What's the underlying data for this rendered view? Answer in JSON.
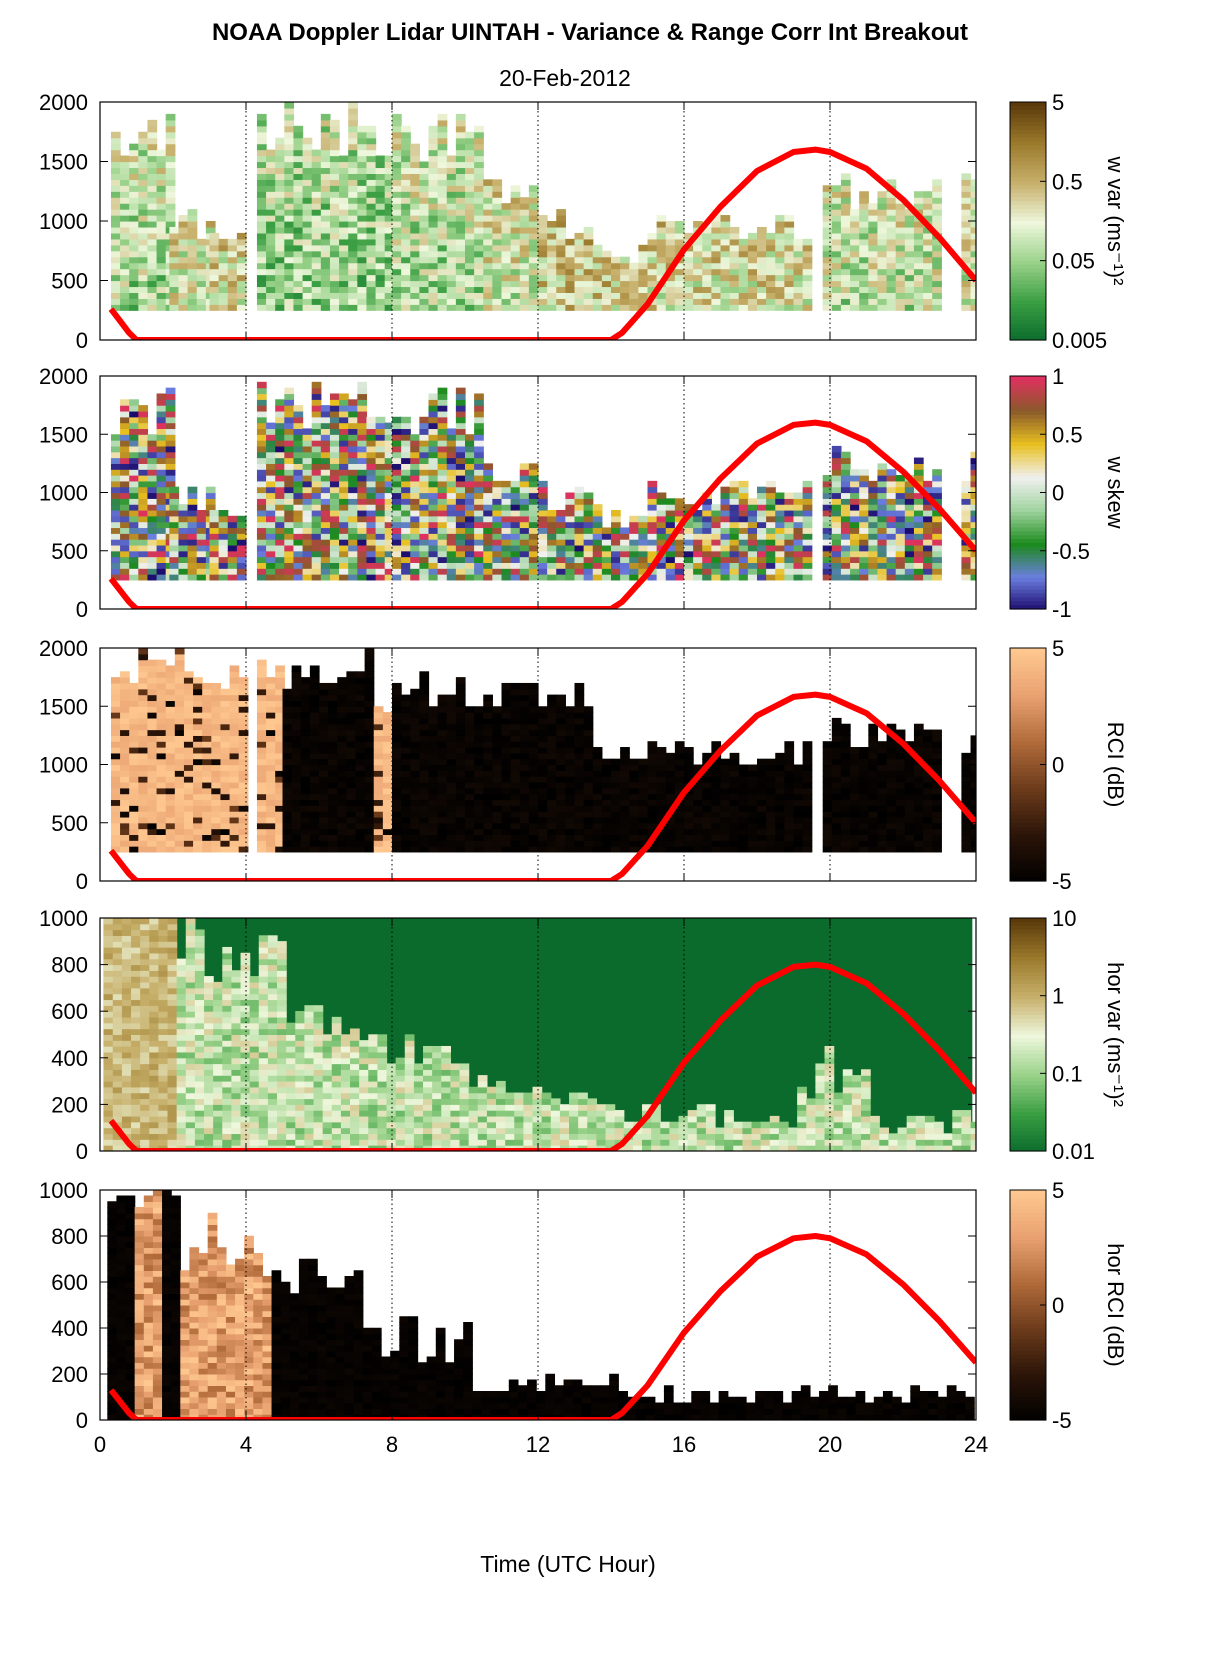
{
  "title": "NOAA Doppler Lidar UINTAH - Variance & Range Corr Int Breakout",
  "subtitle": "20-Feb-2012",
  "chart_data": [
    {
      "type": "heatmap",
      "panel": "w variance",
      "colorbar_label": "w var (ms⁻¹)²",
      "colorbar_ticks": [
        "5",
        "0.5",
        "0.05",
        "0.005"
      ],
      "colormap": [
        "#0a6b2d",
        "#3a9e42",
        "#9ad28a",
        "#eef7dc",
        "#c7b06b",
        "#9b7a2c",
        "#5a3a0a"
      ],
      "x_range": [
        0,
        24
      ],
      "y_range": [
        0,
        2000
      ],
      "yticks": [
        "0",
        "500",
        "1000",
        "1500",
        "2000"
      ],
      "xticks": [
        "0",
        "4",
        "8",
        "12",
        "16",
        "20",
        "24"
      ],
      "data_blocks": [
        {
          "x0": 0.3,
          "x1": 1.9,
          "ymax": 1900,
          "level": 0.35
        },
        {
          "x0": 1.9,
          "x2": 0,
          "x1": 3.0,
          "ymax": 1100,
          "level": 0.45
        },
        {
          "x0": 3.0,
          "x1": 4.0,
          "ymax": 900,
          "level": 0.5
        },
        {
          "x0": 4.3,
          "x1": 8.0,
          "ymax": 2000,
          "level": 0.3
        },
        {
          "x0": 8.0,
          "x1": 10.5,
          "ymax": 1900,
          "level": 0.35
        },
        {
          "x0": 10.5,
          "x1": 12.0,
          "ymax": 1350,
          "level": 0.45
        },
        {
          "x0": 12.0,
          "x1": 13.5,
          "ymax": 1100,
          "level": 0.55
        },
        {
          "x0": 13.5,
          "x1": 15.0,
          "ymax": 800,
          "level": 0.55
        },
        {
          "x0": 15.0,
          "x1": 19.3,
          "ymax": 1100,
          "level": 0.5
        },
        {
          "x0": 19.8,
          "x1": 23.0,
          "ymax": 1400,
          "level": 0.4
        },
        {
          "x0": 23.6,
          "x1": 24.0,
          "ymax": 1400,
          "level": 0.45
        }
      ],
      "red_curve": "sun elevation"
    },
    {
      "type": "heatmap",
      "panel": "w skewness",
      "colorbar_label": "w skew",
      "colorbar_ticks": [
        "1",
        "0.5",
        "0",
        "-0.5",
        "-1"
      ],
      "colormap": [
        "#1b0a6b",
        "#6b7ee0",
        "#1b8a1b",
        "#9fd39f",
        "#f0f0f0",
        "#e8c020",
        "#8a5a2a",
        "#e03060"
      ],
      "x_range": [
        0,
        24
      ],
      "y_range": [
        0,
        2000
      ],
      "yticks": [
        "0",
        "500",
        "1000",
        "1500",
        "2000"
      ],
      "xticks": [
        "0",
        "4",
        "8",
        "12",
        "16",
        "20",
        "24"
      ],
      "data_blocks": [
        {
          "x0": 0.3,
          "x1": 1.9,
          "ymax": 1900
        },
        {
          "x0": 1.9,
          "x1": 3.0,
          "ymax": 1100
        },
        {
          "x0": 3.0,
          "x1": 4.0,
          "ymax": 1000
        },
        {
          "x0": 4.3,
          "x1": 8.0,
          "ymax": 2000
        },
        {
          "x0": 8.0,
          "x1": 10.5,
          "ymax": 1900
        },
        {
          "x0": 10.5,
          "x1": 12.0,
          "ymax": 1350
        },
        {
          "x0": 12.0,
          "x1": 13.5,
          "ymax": 1100
        },
        {
          "x0": 13.5,
          "x1": 15.0,
          "ymax": 900
        },
        {
          "x0": 15.0,
          "x1": 19.3,
          "ymax": 1100
        },
        {
          "x0": 19.8,
          "x1": 23.0,
          "ymax": 1400
        },
        {
          "x0": 23.6,
          "x1": 24.0,
          "ymax": 1400
        }
      ]
    },
    {
      "type": "heatmap",
      "panel": "range corrected intensity",
      "colorbar_label": "RCI (dB)",
      "colorbar_ticks": [
        "5",
        "0",
        "-5"
      ],
      "colormap": [
        "#000000",
        "#2a1408",
        "#6b3a1a",
        "#b06a3a",
        "#e8a070",
        "#ffc890"
      ],
      "x_range": [
        0,
        24
      ],
      "y_range": [
        0,
        2000
      ],
      "yticks": [
        "0",
        "500",
        "1000",
        "1500",
        "2000"
      ],
      "xticks": [
        "0",
        "4",
        "8",
        "12",
        "16",
        "20",
        "24"
      ],
      "regions": [
        {
          "x0": 0.3,
          "x1": 4.0,
          "ymax": 2000,
          "fill": "peach"
        },
        {
          "x0": 4.3,
          "x1": 5.0,
          "ymax": 2000,
          "fill": "peach"
        },
        {
          "x0": 5.0,
          "x1": 7.5,
          "ymax": 2000,
          "fill": "black"
        },
        {
          "x0": 7.5,
          "x1": 8.0,
          "ymax": 1600,
          "fill": "peach"
        },
        {
          "x0": 8.0,
          "x1": 13.5,
          "ymax": 1800,
          "fill": "black"
        },
        {
          "x0": 13.5,
          "x1": 19.3,
          "ymax": 1200,
          "fill": "black"
        },
        {
          "x0": 19.8,
          "x1": 23.0,
          "ymax": 1400,
          "fill": "black"
        },
        {
          "x0": 23.6,
          "x1": 24.0,
          "ymax": 1300,
          "fill": "black"
        }
      ]
    },
    {
      "type": "heatmap",
      "panel": "horizontal variance",
      "colorbar_label": "hor var (ms⁻¹)²",
      "colorbar_ticks": [
        "10",
        "1",
        "0.1",
        "0.01"
      ],
      "colormap": [
        "#0a6b2d",
        "#3a9e42",
        "#9ad28a",
        "#eef7dc",
        "#c7b06b",
        "#9b7a2c",
        "#5a3a0a"
      ],
      "x_range": [
        0,
        24
      ],
      "y_range": [
        0,
        1000
      ],
      "yticks": [
        "0",
        "200",
        "400",
        "600",
        "800",
        "1000"
      ],
      "xticks": [
        "0",
        "4",
        "8",
        "12",
        "16",
        "20",
        "24"
      ],
      "background_level": 0.0
    },
    {
      "type": "heatmap",
      "panel": "horizontal range corrected intensity",
      "colorbar_label": "hor RCI (dB)",
      "colorbar_ticks": [
        "5",
        "0",
        "-5"
      ],
      "colormap": [
        "#000000",
        "#2a1408",
        "#6b3a1a",
        "#b06a3a",
        "#e8a070",
        "#ffc890"
      ],
      "x_range": [
        0,
        24
      ],
      "y_range": [
        0,
        1000
      ],
      "yticks": [
        "0",
        "200",
        "400",
        "600",
        "800",
        "1000"
      ],
      "xticks": [
        "0",
        "4",
        "8",
        "12",
        "16",
        "20",
        "24"
      ],
      "xlabel": "Time (UTC Hour)"
    }
  ],
  "sun_curve": {
    "color": "#ff0000",
    "description": "solar elevation curve, drawn in each panel",
    "points_hours": [
      0.3,
      0.5,
      0.8,
      1.0,
      14.0,
      14.3,
      15.0,
      16.0,
      17.0,
      18.0,
      19.0,
      19.6,
      20.0,
      21.0,
      22.0,
      23.0,
      24.0
    ],
    "points_frac": [
      0.13,
      0.09,
      0.03,
      0.0,
      0.0,
      0.03,
      0.15,
      0.38,
      0.56,
      0.71,
      0.79,
      0.8,
      0.79,
      0.72,
      0.59,
      0.43,
      0.25
    ]
  }
}
